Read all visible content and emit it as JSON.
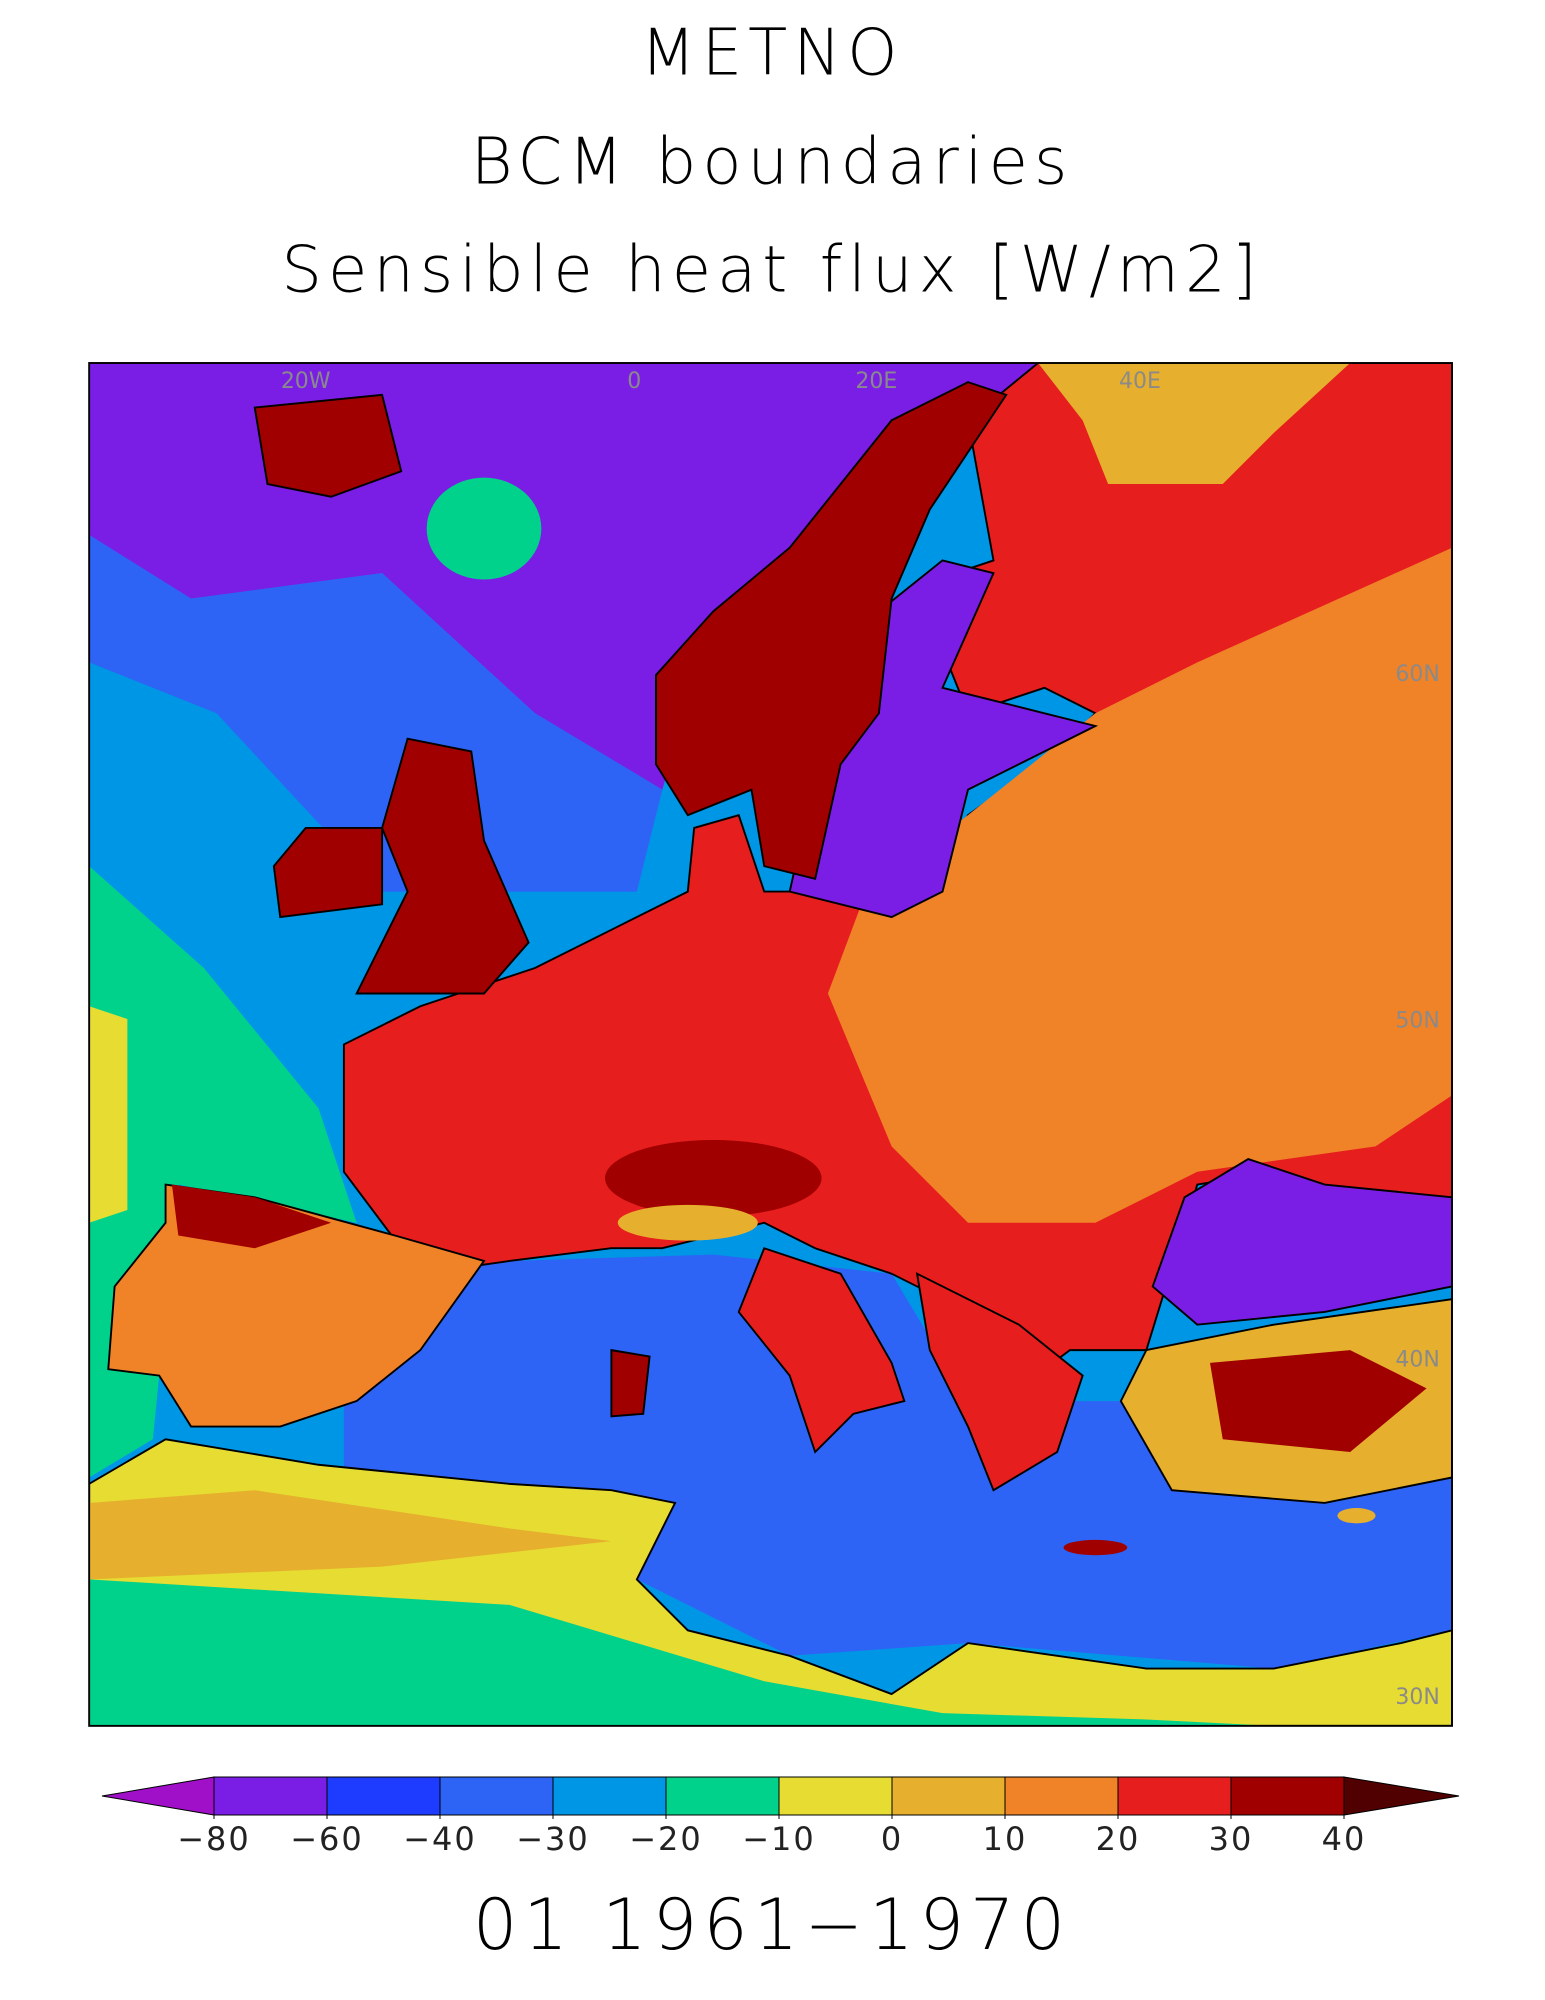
{
  "title_lines": [
    "METNO",
    "BCM boundaries",
    "Sensible heat flux [W/m2]"
  ],
  "graticule_labels": [
    "20W",
    "0",
    "20E",
    "40E",
    "60N",
    "50N",
    "40N",
    "30N"
  ],
  "colorbar": {
    "ticks": [
      {
        "value": -80,
        "label": "−80"
      },
      {
        "value": -60,
        "label": "−60"
      },
      {
        "value": -40,
        "label": "−40"
      },
      {
        "value": -30,
        "label": "−30"
      },
      {
        "value": -20,
        "label": "−20"
      },
      {
        "value": -10,
        "label": "−10"
      },
      0,
      10,
      20,
      30,
      40
    ],
    "colors": [
      "#a010c8",
      "#7a1ee6",
      "#1e3cff",
      "#2d64f5",
      "#0096e6",
      "#00d28c",
      "#e6dc32",
      "#e6af2d",
      "#f08228",
      "#e61e1e",
      "#a00000",
      "#500000"
    ],
    "extend": "both"
  },
  "period": "01 1961−1970"
}
